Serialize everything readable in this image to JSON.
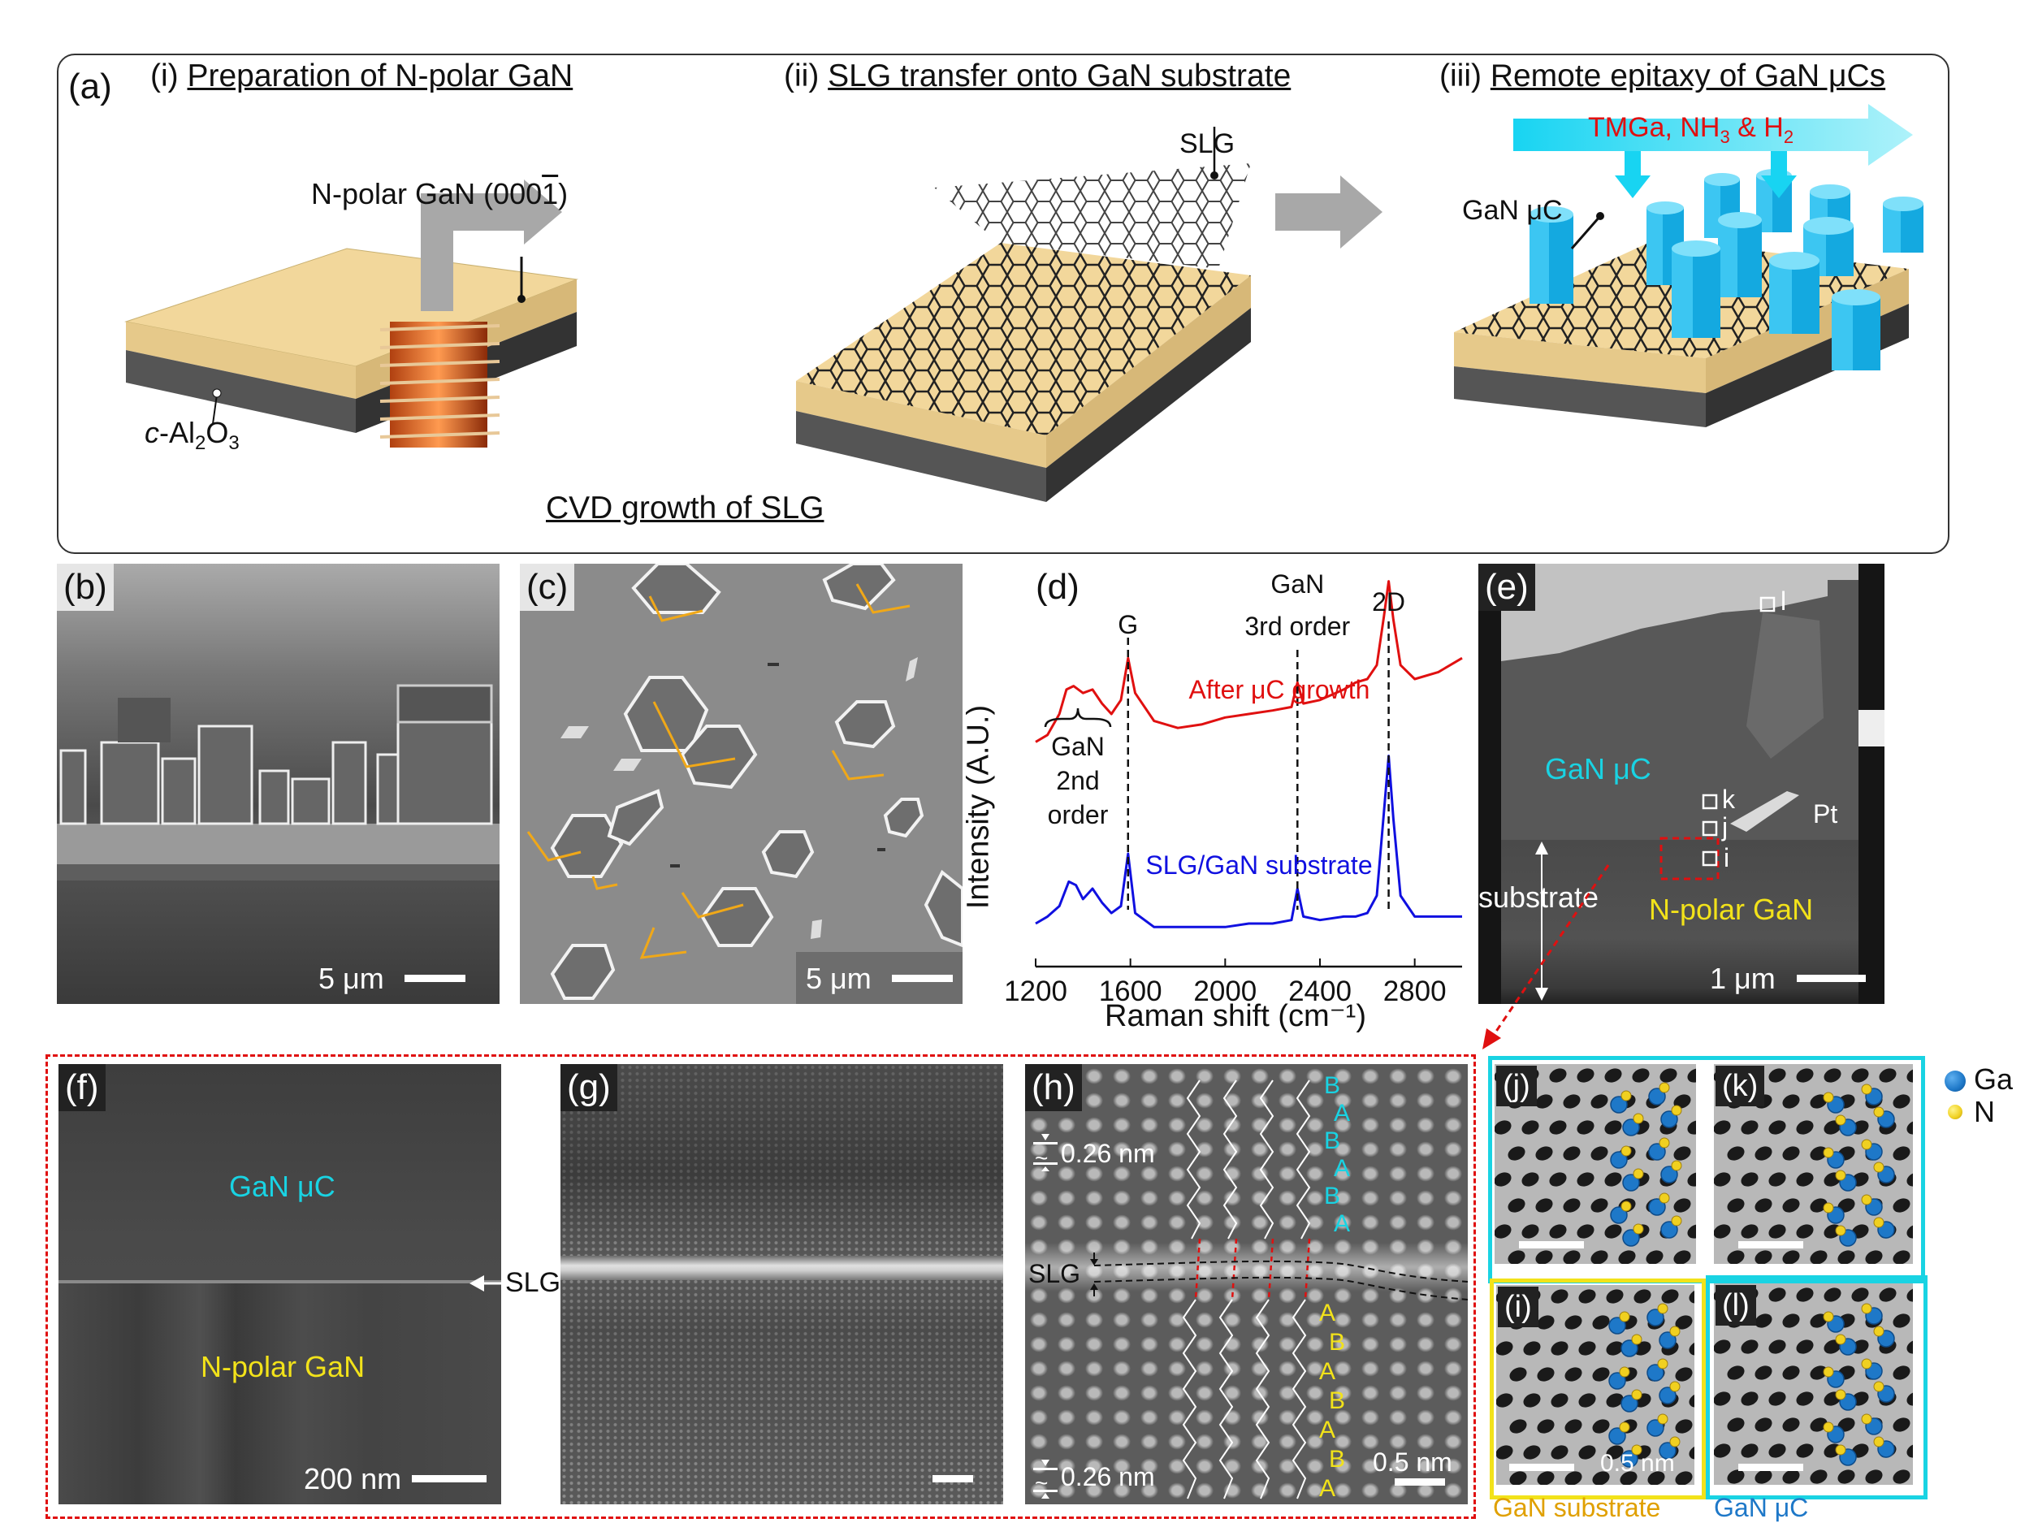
{
  "panel_a": {
    "label": "(a)",
    "step1": {
      "num": "(i)",
      "title": "Preparation of N-polar GaN"
    },
    "step2": {
      "num": "(ii)",
      "title": "SLG transfer onto GaN substrate"
    },
    "step3": {
      "num": "(iii)",
      "title": "Remote epitaxy of GaN μCs"
    },
    "npolar_gan_label": "N-polar GaN (000",
    "npolar_gan_index": "1",
    "npolar_gan_close": ")",
    "sapphire_prefix": "c",
    "sapphire_text": "-Al",
    "sapphire_sub1": "2",
    "sapphire_o": "O",
    "sapphire_sub2": "3",
    "cvd_label": "CVD growth of SLG",
    "slg_label": "SLG",
    "gan_uc_label": "GaN μC",
    "precursor_tmga": "TMGa,  NH",
    "precursor_sub3": "3",
    "precursor_and": " & H",
    "precursor_sub2": "2"
  },
  "panel_b": {
    "label": "(b)",
    "scale": "5 μm"
  },
  "panel_c": {
    "label": "(c)",
    "scale": "5 μm"
  },
  "panel_d": {
    "label": "(d)"
  },
  "panel_e": {
    "label": "(e)",
    "gan_uc": "GaN μC",
    "pt": "Pt",
    "substrate": "substrate",
    "npolar": "N-polar GaN",
    "scale": "1 μm",
    "markers": [
      "l",
      "k",
      "j",
      "i"
    ]
  },
  "panel_f": {
    "label": "(f)",
    "gan_uc": "GaN μC",
    "slg": "SLG",
    "npolar": "N-polar GaN",
    "scale": "200 nm"
  },
  "panel_g": {
    "label": "(g)"
  },
  "panel_h": {
    "label": "(h)",
    "spacing_top": "0.26 nm",
    "spacing_bottom": "0.26 nm",
    "tilde": "~",
    "slg": "SLG",
    "scale": "0.5 nm",
    "stack_top": [
      "B",
      "A",
      "B",
      "A",
      "B",
      "A"
    ],
    "stack_bottom": [
      "A",
      "B",
      "A",
      "B",
      "A",
      "B",
      "A"
    ]
  },
  "panel_jkil": {
    "j": "(j)",
    "k": "(k)",
    "i": "(i)",
    "l": "(l)",
    "scale": "0.5 nm",
    "legend_ga": "Ga",
    "legend_n": "N",
    "gan_substrate": "GaN substrate",
    "gan_uc": "GaN μC"
  },
  "colors": {
    "cyan": "#19d3e3",
    "yellow": "#f2e21a",
    "red": "#e01010",
    "blue": "#1010e0",
    "gan_top": "#f2d79b",
    "orange_arrow": "#f0a818",
    "ga_ball": "#1e78c8",
    "n_ball": "#f0d020",
    "substrate_label": "#e0a000",
    "uc_label": "#1e78c8"
  },
  "chart_data": {
    "type": "line",
    "title": "",
    "xlabel": "Raman shift (cm⁻¹)",
    "ylabel": "Intensity (A.U.)",
    "xlim": [
      1200,
      3000
    ],
    "xticks": [
      1200,
      1600,
      2000,
      2400,
      2800
    ],
    "peak_labels": [
      {
        "text": "G",
        "x": 1590
      },
      {
        "text": "GaN",
        "text2": "3rd order",
        "x": 2305
      },
      {
        "text": "2D",
        "x": 2690
      }
    ],
    "bracket_label": [
      "GaN",
      "2nd",
      "order"
    ],
    "series": [
      {
        "name": "After μC growth",
        "color": "#e01010",
        "x": [
          1200,
          1250,
          1300,
          1330,
          1360,
          1400,
          1440,
          1480,
          1520,
          1560,
          1590,
          1620,
          1700,
          1800,
          1900,
          2000,
          2100,
          2200,
          2280,
          2305,
          2330,
          2400,
          2500,
          2550,
          2600,
          2640,
          2670,
          2690,
          2710,
          2740,
          2800,
          2900,
          3000
        ],
        "y": [
          0.62,
          0.64,
          0.7,
          0.77,
          0.78,
          0.76,
          0.77,
          0.73,
          0.7,
          0.74,
          0.86,
          0.76,
          0.68,
          0.66,
          0.67,
          0.69,
          0.7,
          0.71,
          0.72,
          0.79,
          0.73,
          0.74,
          0.77,
          0.79,
          0.8,
          0.84,
          0.98,
          1.08,
          0.97,
          0.84,
          0.8,
          0.82,
          0.86
        ]
      },
      {
        "name": "SLG/GaN substrate",
        "color": "#1010e0",
        "x": [
          1200,
          1250,
          1300,
          1340,
          1370,
          1400,
          1440,
          1480,
          1520,
          1560,
          1590,
          1620,
          1700,
          1800,
          1900,
          2000,
          2100,
          2200,
          2280,
          2305,
          2330,
          2400,
          2500,
          2550,
          2600,
          2640,
          2670,
          2690,
          2710,
          2740,
          2800,
          2900,
          3000
        ],
        "y": [
          0.1,
          0.12,
          0.15,
          0.22,
          0.21,
          0.17,
          0.2,
          0.16,
          0.13,
          0.15,
          0.3,
          0.13,
          0.09,
          0.09,
          0.09,
          0.09,
          0.1,
          0.1,
          0.11,
          0.2,
          0.12,
          0.11,
          0.12,
          0.12,
          0.13,
          0.18,
          0.42,
          0.58,
          0.4,
          0.18,
          0.12,
          0.12,
          0.12
        ]
      }
    ]
  }
}
